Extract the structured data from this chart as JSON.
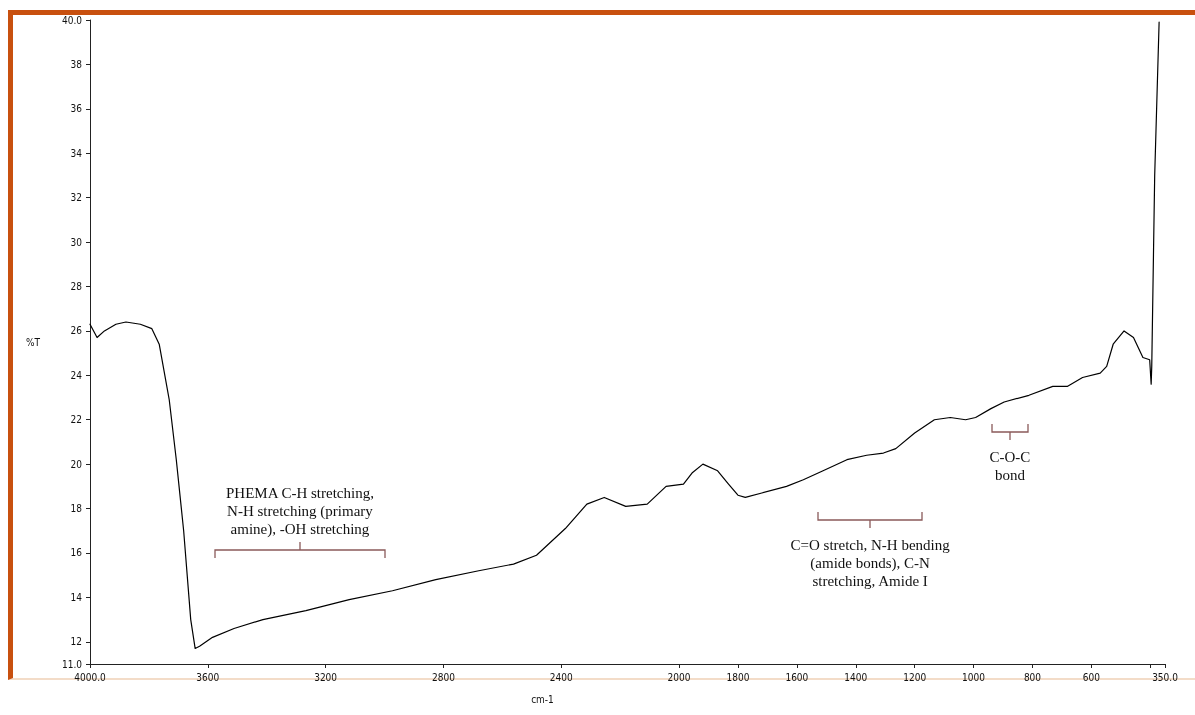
{
  "chart_data": {
    "type": "line",
    "xlabel": "cm-1",
    "ylabel": "%T",
    "x": [
      4000,
      3976,
      3951,
      3912,
      3878,
      3829,
      3790,
      3765,
      3731,
      3707,
      3682,
      3658,
      3643,
      3628,
      3584,
      3511,
      3413,
      3267,
      3120,
      2973,
      2826,
      2680,
      2562,
      2484,
      2386,
      2313,
      2254,
      2181,
      2108,
      2044,
      1985,
      1956,
      1919,
      1869,
      1832,
      1800,
      1775,
      1719,
      1635,
      1578,
      1511,
      1430,
      1363,
      1306,
      1264,
      1200,
      1133,
      1079,
      1027,
      993,
      941,
      896,
      812,
      731,
      682,
      630,
      570,
      548,
      526,
      489,
      457,
      425,
      402,
      397,
      395,
      385,
      370
    ],
    "series": [
      {
        "color": "#000000",
        "values": [
          26.3,
          25.7,
          26.0,
          26.3,
          26.4,
          26.3,
          26.1,
          25.4,
          22.9,
          20.2,
          17.0,
          13.0,
          11.7,
          11.8,
          12.2,
          12.6,
          13.0,
          13.4,
          13.9,
          14.3,
          14.8,
          15.2,
          15.5,
          15.9,
          17.1,
          18.2,
          18.5,
          18.1,
          18.2,
          19.0,
          19.1,
          19.6,
          20.0,
          19.7,
          19.1,
          18.6,
          18.5,
          18.7,
          19.0,
          19.3,
          19.7,
          20.2,
          20.4,
          20.5,
          20.7,
          21.4,
          22.0,
          22.1,
          22.0,
          22.1,
          22.5,
          22.8,
          23.1,
          23.5,
          23.5,
          23.9,
          24.1,
          24.4,
          25.4,
          26.0,
          25.7,
          24.8,
          24.7,
          23.6,
          24.4,
          33.0,
          39.9
        ]
      }
    ],
    "xlim": [
      4000,
      350
    ],
    "xticks": [
      {
        "value": 4000,
        "label": "4000.0"
      },
      3600,
      3200,
      2800,
      2400,
      2000,
      1800,
      1600,
      1400,
      1200,
      1000,
      800,
      600,
      {
        "value": 400,
        "label": null
      },
      {
        "value": 350,
        "label": "350.0"
      }
    ],
    "ylim": [
      11,
      40
    ],
    "yticks": [
      {
        "value": 11,
        "label": "11.0"
      },
      12,
      14,
      16,
      18,
      20,
      22,
      24,
      26,
      28,
      30,
      32,
      34,
      36,
      38,
      {
        "value": 40,
        "label": "40.0"
      }
    ],
    "grid": false,
    "marker": "none",
    "line_style": "solid",
    "annotations": [
      "PHEMA C-H stretching,\nN-H stretching (primary\namine), -OH stretching",
      "C=O stretch, N-H bending\n(amide bonds), C-N\nstretching, Amide I",
      "C-O-C\nbond"
    ]
  }
}
